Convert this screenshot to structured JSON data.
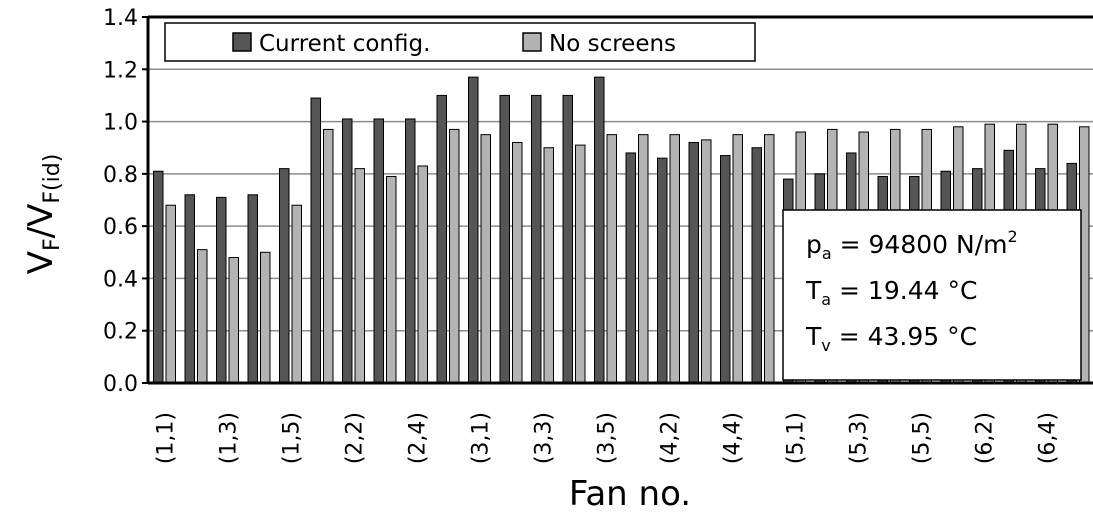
{
  "chart_data": {
    "type": "bar",
    "xlabel": "Fan no.",
    "ylabel": {
      "base": "V",
      "base_sub": "F",
      "sep": "/",
      "base2": "V",
      "base2_sub": "F(id)"
    },
    "ylim": [
      0,
      1.4
    ],
    "yticks": [
      "0.0",
      "0.2",
      "0.4",
      "0.6",
      "0.8",
      "1.0",
      "1.2",
      "1.4"
    ],
    "grid": true,
    "legend_placement": "top-left",
    "categories": [
      "(1,1)",
      "(1,2)",
      "(1,3)",
      "(1,4)",
      "(1,5)",
      "(2,1)",
      "(2,2)",
      "(2,3)",
      "(2,4)",
      "(2,5)",
      "(3,1)",
      "(3,2)",
      "(3,3)",
      "(3,4)",
      "(3,5)",
      "(4,1)",
      "(4,2)",
      "(4,3)",
      "(4,4)",
      "(4,5)",
      "(5,1)",
      "(5,2)",
      "(5,3)",
      "(5,4)",
      "(5,5)",
      "(6,1)",
      "(6,2)",
      "(6,3)",
      "(6,4)",
      "(6,5)"
    ],
    "tick_labels_shown": [
      "(1,1)",
      "(1,3)",
      "(1,5)",
      "(2,2)",
      "(2,4)",
      "(3,1)",
      "(3,3)",
      "(3,5)",
      "(4,2)",
      "(4,4)",
      "(5,1)",
      "(5,3)",
      "(5,5)",
      "(6,2)",
      "(6,4)"
    ],
    "series": [
      {
        "name": "Current config.",
        "color": "#555555",
        "values": [
          0.81,
          0.72,
          0.71,
          0.72,
          0.82,
          1.09,
          1.01,
          1.01,
          1.01,
          1.1,
          1.17,
          1.1,
          1.1,
          1.1,
          1.17,
          0.88,
          0.86,
          0.92,
          0.87,
          0.9,
          0.78,
          0.8,
          0.88,
          0.79,
          0.79,
          0.81,
          0.82,
          0.89,
          0.82,
          0.84
        ]
      },
      {
        "name": "No screens",
        "color": "#b3b3b3",
        "values": [
          0.68,
          0.51,
          0.48,
          0.5,
          0.68,
          0.97,
          0.82,
          0.79,
          0.83,
          0.97,
          0.95,
          0.92,
          0.9,
          0.91,
          0.95,
          0.95,
          0.95,
          0.93,
          0.95,
          0.95,
          0.96,
          0.97,
          0.96,
          0.97,
          0.97,
          0.98,
          0.99,
          0.99,
          0.99,
          0.98
        ]
      }
    ],
    "annotation": [
      {
        "base": "p",
        "sub": "a",
        "text": " = 94800 N/m",
        "sup": "2"
      },
      {
        "base": "T",
        "sub": "a",
        "text": " = 19.44 °C",
        "sup": ""
      },
      {
        "base": "T",
        "sub": "v",
        "text": " = 43.95 °C",
        "sup": ""
      }
    ]
  }
}
